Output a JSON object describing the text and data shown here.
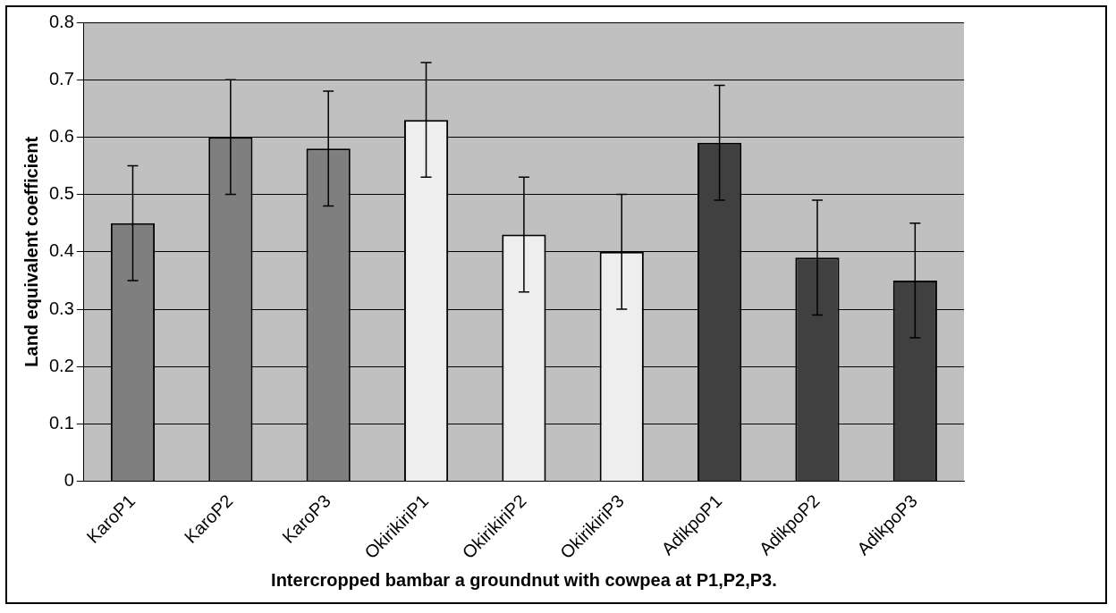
{
  "chart_data": {
    "type": "bar",
    "xlabel": "Intercropped bambar a groundnut with cowpea at P1,P2,P3.",
    "ylabel": "Land equivalent coefficient",
    "categories": [
      "KaroP1",
      "KaroP2",
      "KaroP3",
      "OkirikiriP1",
      "OkirikiriP2",
      "OkirikiriP3",
      "AdikpoP1",
      "AdikpoP2",
      "AdikpoP3"
    ],
    "values": [
      0.45,
      0.6,
      0.58,
      0.63,
      0.43,
      0.4,
      0.59,
      0.39,
      0.35
    ],
    "errors": [
      0.1,
      0.1,
      0.1,
      0.1,
      0.1,
      0.1,
      0.1,
      0.1,
      0.1
    ],
    "colors": [
      "#7f7f7f",
      "#7f7f7f",
      "#7f7f7f",
      "#eeeeee",
      "#eeeeee",
      "#eeeeee",
      "#404040",
      "#404040",
      "#404040"
    ],
    "ylim": [
      0,
      0.8
    ],
    "yticks": [
      0,
      0.1,
      0.2,
      0.3,
      0.4,
      0.5,
      0.6,
      0.7,
      0.8
    ],
    "grid": "y",
    "legend": false
  }
}
